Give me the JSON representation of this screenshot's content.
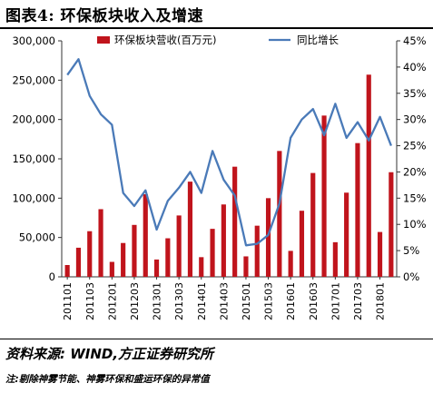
{
  "title": "图表4:  环保板块收入及增速",
  "source": "资料来源: WIND,方正证券研究所",
  "note": "注:剔除神雾节能、神雾环保和盛运环保的异常值",
  "colors": {
    "bar": "#c0141c",
    "line": "#4a7ab8",
    "axis": "#333333"
  },
  "chart_data": {
    "type": "bar+line",
    "legend": {
      "placement": "top",
      "bar_label": "环保板块营收(百万元)",
      "line_label": "同比增长"
    },
    "ylim_left": [
      0,
      300000
    ],
    "yticks_left": [
      "0",
      "50,000",
      "100,000",
      "150,000",
      "200,000",
      "250,000",
      "300,000"
    ],
    "ylim_right": [
      0,
      45
    ],
    "yticks_right": [
      "0%",
      "5%",
      "10%",
      "15%",
      "20%",
      "25%",
      "30%",
      "35%",
      "40%",
      "45%"
    ],
    "x_tick_labels": [
      "201101",
      "201103",
      "201201",
      "201203",
      "201301",
      "201303",
      "201401",
      "201403",
      "201501",
      "201503",
      "201601",
      "201603",
      "201701",
      "201703",
      "201801"
    ],
    "categories": [
      "201101",
      "201102",
      "201103",
      "201104",
      "201201",
      "201202",
      "201203",
      "201204",
      "201301",
      "201302",
      "201303",
      "201304",
      "201401",
      "201402",
      "201403",
      "201404",
      "201501",
      "201502",
      "201503",
      "201504",
      "201601",
      "201602",
      "201603",
      "201604",
      "201701",
      "201702",
      "201703",
      "201704",
      "201801",
      "201802"
    ],
    "series": [
      {
        "name": "环保板块营收(百万元)",
        "kind": "bar",
        "axis": "left",
        "values": [
          15000,
          37000,
          58000,
          86000,
          19000,
          43000,
          66000,
          105000,
          22000,
          49000,
          78000,
          121000,
          25000,
          61000,
          92000,
          140000,
          26000,
          65000,
          100000,
          160000,
          33000,
          84000,
          132000,
          205000,
          44000,
          107000,
          170000,
          257000,
          57000,
          133000
        ]
      },
      {
        "name": "同比增长",
        "kind": "line",
        "axis": "right",
        "values": [
          38.5,
          41.5,
          34.5,
          31,
          29,
          16,
          13.5,
          16.5,
          9,
          14.5,
          17,
          20,
          16,
          24,
          18.5,
          15.5,
          6,
          6.3,
          8,
          14,
          26.5,
          30,
          32,
          27,
          33,
          26.5,
          29.5,
          26,
          30.5,
          25
        ]
      }
    ]
  }
}
